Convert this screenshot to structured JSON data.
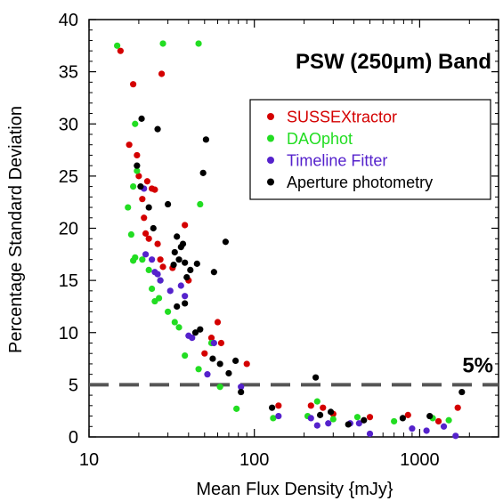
{
  "chart_data": {
    "type": "scatter",
    "title": "PSW (250μm) Band",
    "xlabel": "Mean Flux Density  {mJy}",
    "ylabel": "Percentage Standard Deviation",
    "x_scale": "log",
    "xlim": [
      10,
      3000
    ],
    "ylim": [
      0,
      40
    ],
    "x_ticks": [
      "10",
      "100",
      "1000"
    ],
    "y_ticks": [
      "0",
      "5",
      "10",
      "15",
      "20",
      "25",
      "30",
      "35",
      "40"
    ],
    "legend_position": "upper-right",
    "reference_line": {
      "y": 5,
      "label": "5%",
      "style": "dashed"
    },
    "series": [
      {
        "name": "SUSSEXtractor",
        "color": "#d40000",
        "points": [
          [
            15.5,
            37
          ],
          [
            18.5,
            33.8
          ],
          [
            27.5,
            34.8
          ],
          [
            17.5,
            28
          ],
          [
            19.5,
            27
          ],
          [
            20,
            25
          ],
          [
            21,
            22.8
          ],
          [
            21.5,
            21
          ],
          [
            22,
            19.5
          ],
          [
            23,
            19
          ],
          [
            22.5,
            24.5
          ],
          [
            24,
            23.8
          ],
          [
            25,
            23.7
          ],
          [
            26,
            18.5
          ],
          [
            27,
            17
          ],
          [
            28,
            16.3
          ],
          [
            32,
            16.2
          ],
          [
            38,
            20.3
          ],
          [
            40,
            15
          ],
          [
            50,
            8
          ],
          [
            55,
            9.5
          ],
          [
            60,
            11
          ],
          [
            63,
            9
          ],
          [
            90,
            7
          ],
          [
            140,
            3
          ],
          [
            220,
            3
          ],
          [
            260,
            2.8
          ],
          [
            300,
            2.2
          ],
          [
            500,
            1.9
          ],
          [
            850,
            2.1
          ],
          [
            1300,
            1.5
          ],
          [
            1700,
            2.8
          ]
        ]
      },
      {
        "name": "DAOphot",
        "color": "#22dd22",
        "points": [
          [
            14.8,
            37.5
          ],
          [
            46,
            37.7
          ],
          [
            28,
            37.7
          ],
          [
            19,
            30
          ],
          [
            19.5,
            25.5
          ],
          [
            18.5,
            24
          ],
          [
            17.2,
            22
          ],
          [
            18,
            19.4
          ],
          [
            19,
            17.2
          ],
          [
            18.5,
            16.9
          ],
          [
            21,
            17
          ],
          [
            23,
            16
          ],
          [
            24,
            14.2
          ],
          [
            25,
            13
          ],
          [
            26.5,
            13.3
          ],
          [
            27,
            15
          ],
          [
            30,
            12
          ],
          [
            33,
            11
          ],
          [
            35,
            10.5
          ],
          [
            38,
            7.8
          ],
          [
            46,
            6.5
          ],
          [
            47,
            22.3
          ],
          [
            55,
            9
          ],
          [
            62,
            4.8
          ],
          [
            78,
            2.7
          ],
          [
            130,
            1.8
          ],
          [
            210,
            2
          ],
          [
            240,
            3.4
          ],
          [
            300,
            1.7
          ],
          [
            420,
            1.9
          ],
          [
            700,
            1.5
          ],
          [
            1200,
            1.8
          ],
          [
            1500,
            1.6
          ]
        ]
      },
      {
        "name": "Timeline Fitter",
        "color": "#5522cc",
        "points": [
          [
            21.5,
            23.8
          ],
          [
            22,
            17.5
          ],
          [
            24,
            17
          ],
          [
            25,
            15.8
          ],
          [
            26,
            15.6
          ],
          [
            27,
            15
          ],
          [
            31,
            14
          ],
          [
            36,
            14.5
          ],
          [
            38,
            13.5
          ],
          [
            40,
            9.7
          ],
          [
            42,
            9.5
          ],
          [
            52,
            6
          ],
          [
            57,
            9
          ],
          [
            83,
            4.8
          ],
          [
            140,
            2
          ],
          [
            220,
            1.8
          ],
          [
            240,
            1.1
          ],
          [
            280,
            1.3
          ],
          [
            380,
            1.3
          ],
          [
            430,
            1.3
          ],
          [
            500,
            0.3
          ],
          [
            900,
            0.8
          ],
          [
            1100,
            0.6
          ],
          [
            1400,
            1
          ],
          [
            1650,
            0.1
          ]
        ]
      },
      {
        "name": "Aperture photometry",
        "color": "#000000",
        "points": [
          [
            20.8,
            30.5
          ],
          [
            26,
            29.5
          ],
          [
            51,
            28.5
          ],
          [
            49,
            25.3
          ],
          [
            19.5,
            26
          ],
          [
            20.5,
            24
          ],
          [
            23,
            22
          ],
          [
            24.5,
            20
          ],
          [
            30,
            22.3
          ],
          [
            34,
            19.2
          ],
          [
            36,
            18.2
          ],
          [
            37,
            18.5
          ],
          [
            33,
            17.7
          ],
          [
            32.5,
            16.5
          ],
          [
            35,
            17
          ],
          [
            38,
            16.7
          ],
          [
            39,
            15.3
          ],
          [
            41,
            16
          ],
          [
            45,
            16.6
          ],
          [
            57,
            15.8
          ],
          [
            67,
            18.7
          ],
          [
            34,
            12.5
          ],
          [
            38,
            12.8
          ],
          [
            44,
            10
          ],
          [
            47,
            10.3
          ],
          [
            56,
            7.5
          ],
          [
            62,
            7
          ],
          [
            70,
            6.1
          ],
          [
            77,
            7.3
          ],
          [
            83,
            4.3
          ],
          [
            128,
            2.8
          ],
          [
            235,
            5.7
          ],
          [
            250,
            2.1
          ],
          [
            290,
            2.4
          ],
          [
            370,
            1.2
          ],
          [
            460,
            1.6
          ],
          [
            790,
            1.8
          ],
          [
            1150,
            2
          ],
          [
            1800,
            4.3
          ]
        ]
      }
    ]
  }
}
